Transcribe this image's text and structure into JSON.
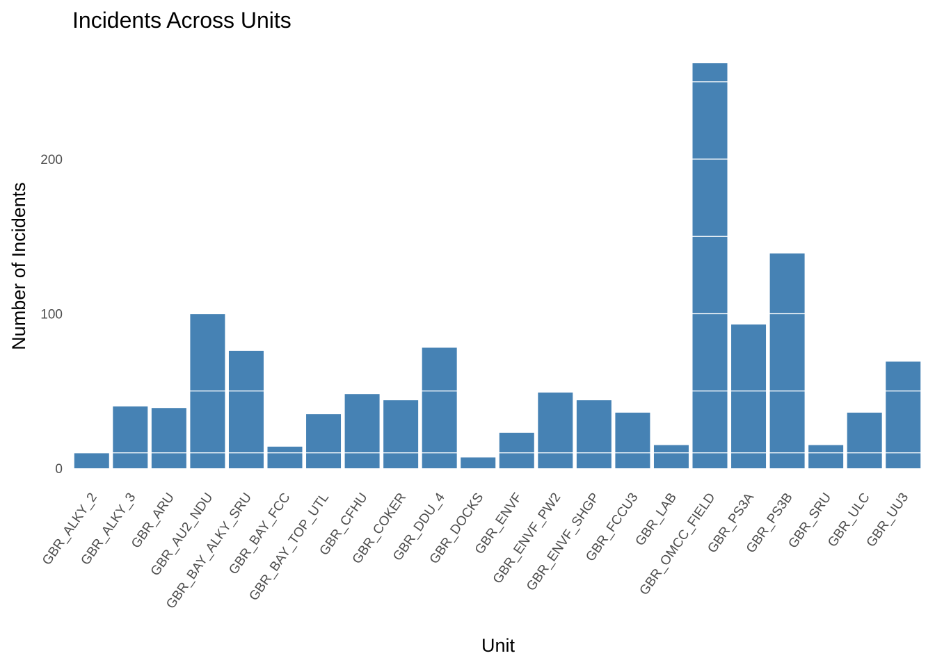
{
  "chart_data": {
    "type": "bar",
    "title": "Incidents Across Units",
    "xlabel": "Unit",
    "ylabel": "Number of Incidents",
    "categories": [
      "GBR_ALKY_2",
      "GBR_ALKY_3",
      "GBR_ARU",
      "GBR_AU2_NDU",
      "GBR_BAY_ALKY_SRU",
      "GBR_BAY_FCC",
      "GBR_BAY_TOP_UTL",
      "GBR_CFHU",
      "GBR_COKER",
      "GBR_DDU_4",
      "GBR_DOCKS",
      "GBR_ENVF",
      "GBR_ENVF_PW2",
      "GBR_ENVF_SHGP",
      "GBR_FCCU3",
      "GBR_LAB",
      "GBR_OMCC_FIELD",
      "GBR_PS3A",
      "GBR_PS3B",
      "GBR_SRU",
      "GBR_ULC",
      "GBR_UU3"
    ],
    "values": [
      10,
      40,
      39,
      100,
      76,
      14,
      35,
      48,
      44,
      78,
      7,
      23,
      49,
      44,
      36,
      15,
      262,
      93,
      139,
      15,
      36,
      69
    ],
    "ylim": [
      0,
      270
    ],
    "yticks": [
      0,
      100,
      200
    ],
    "bar_color": "#4682B4",
    "grid": true,
    "legend": "none"
  }
}
